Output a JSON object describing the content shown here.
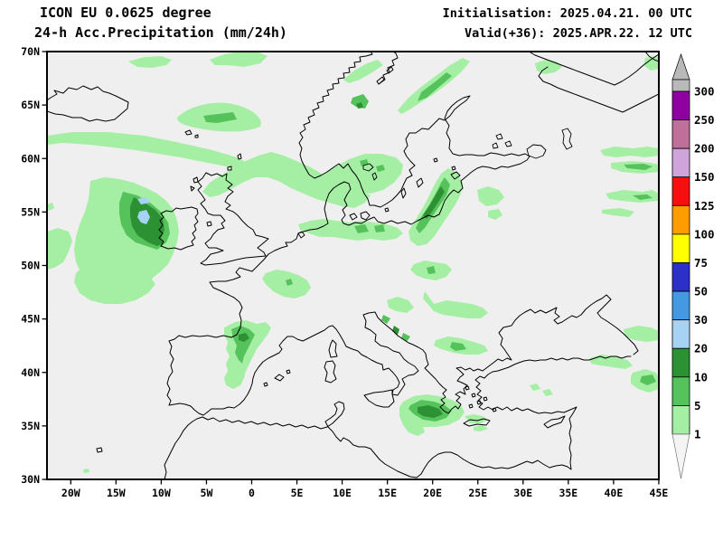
{
  "header": {
    "model_line": "ICON EU 0.0625 degree",
    "field_line": "24-h Acc.Precipitation (mm/24h)",
    "init_line": "Initialisation: 2025.04.21. 00 UTC",
    "valid_line": "Valid(+36): 2025.APR.22. 12 UTC"
  },
  "axes": {
    "lat_labels": [
      "70N",
      "65N",
      "60N",
      "55N",
      "50N",
      "45N",
      "40N",
      "35N",
      "30N"
    ],
    "lon_labels": [
      "20W",
      "15W",
      "10W",
      "5W",
      "0",
      "5E",
      "10E",
      "15E",
      "20E",
      "25E",
      "30E",
      "35E",
      "40E",
      "45E"
    ]
  },
  "colorbar": {
    "levels": [
      "300",
      "250",
      "200",
      "150",
      "125",
      "100",
      "75",
      "50",
      "30",
      "20",
      "10",
      "5",
      "1"
    ],
    "segment_colors_top_to_bottom": [
      "#8f00a0",
      "#c06f9b",
      "#cfa4da",
      "#f50f0f",
      "#ff9c00",
      "#ffff00",
      "#2c2fc8",
      "#4599e3",
      "#a6d3f3",
      "#2c9133",
      "#56c25c",
      "#a5efa5"
    ],
    "overflow_color": "#b9b9b9",
    "underflow_color": "#f4f4f4",
    "units": "mm/24h"
  },
  "map": {
    "background": "#efefef",
    "coastline_color": "#000000",
    "palette": {
      "level_1_5": "#a5efa5",
      "level_5_10": "#56c25c",
      "level_10_20": "#2c9133",
      "level_20_30": "#a6d3f3"
    }
  }
}
